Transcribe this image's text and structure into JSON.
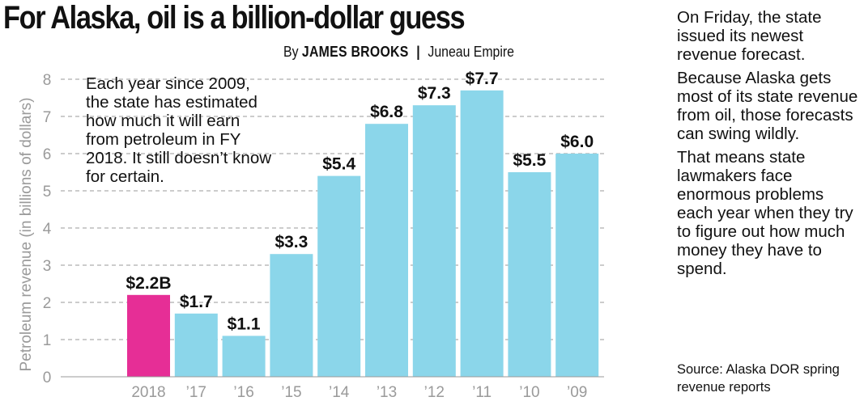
{
  "header": {
    "title": "For Alaska, oil is a billion-dollar guess",
    "byline_prefix": "By",
    "author": "JAMES BROOKS",
    "separator": "|",
    "outlet": "Juneau Empire"
  },
  "annotation": "Each year since 2009, the state has estimated how much it will earn from petroleum in FY 2018. It still doesn’t know for certain.",
  "sidebar": {
    "paragraphs": [
      "On Friday, the state issued its newest revenue forecast.",
      "Because Alaska gets most of its state revenue from oil, those forecasts can swing wildly.",
      "That means state lawmakers face enormous problems each year when they try to figure out how much money they have to spend."
    ],
    "source": "Source: Alaska DOR spring revenue reports"
  },
  "colors": {
    "highlight": "#e62e96",
    "bar": "#8bd6ea",
    "grid": "#9a9a9a",
    "axis_text": "#9a9a9a"
  },
  "chart_data": {
    "type": "bar",
    "ylabel": "Petroleum revenue (in billions of dollars)",
    "xlabel": "",
    "ylim": [
      0,
      8
    ],
    "yticks": [
      0,
      1,
      2,
      3,
      4,
      5,
      6,
      7,
      8
    ],
    "grid": true,
    "categories": [
      "2018",
      "’17",
      "’16",
      "’15",
      "’14",
      "’13",
      "’12",
      "’11",
      "’10",
      "’09"
    ],
    "values": [
      2.2,
      1.7,
      1.1,
      3.3,
      5.4,
      6.8,
      7.3,
      7.7,
      5.5,
      6.0
    ],
    "value_labels": [
      "$2.2B",
      "$1.7",
      "$1.1",
      "$3.3",
      "$5.4",
      "$6.8",
      "$7.3",
      "$7.7",
      "$5.5",
      "$6.0"
    ],
    "highlight_index": 0
  }
}
